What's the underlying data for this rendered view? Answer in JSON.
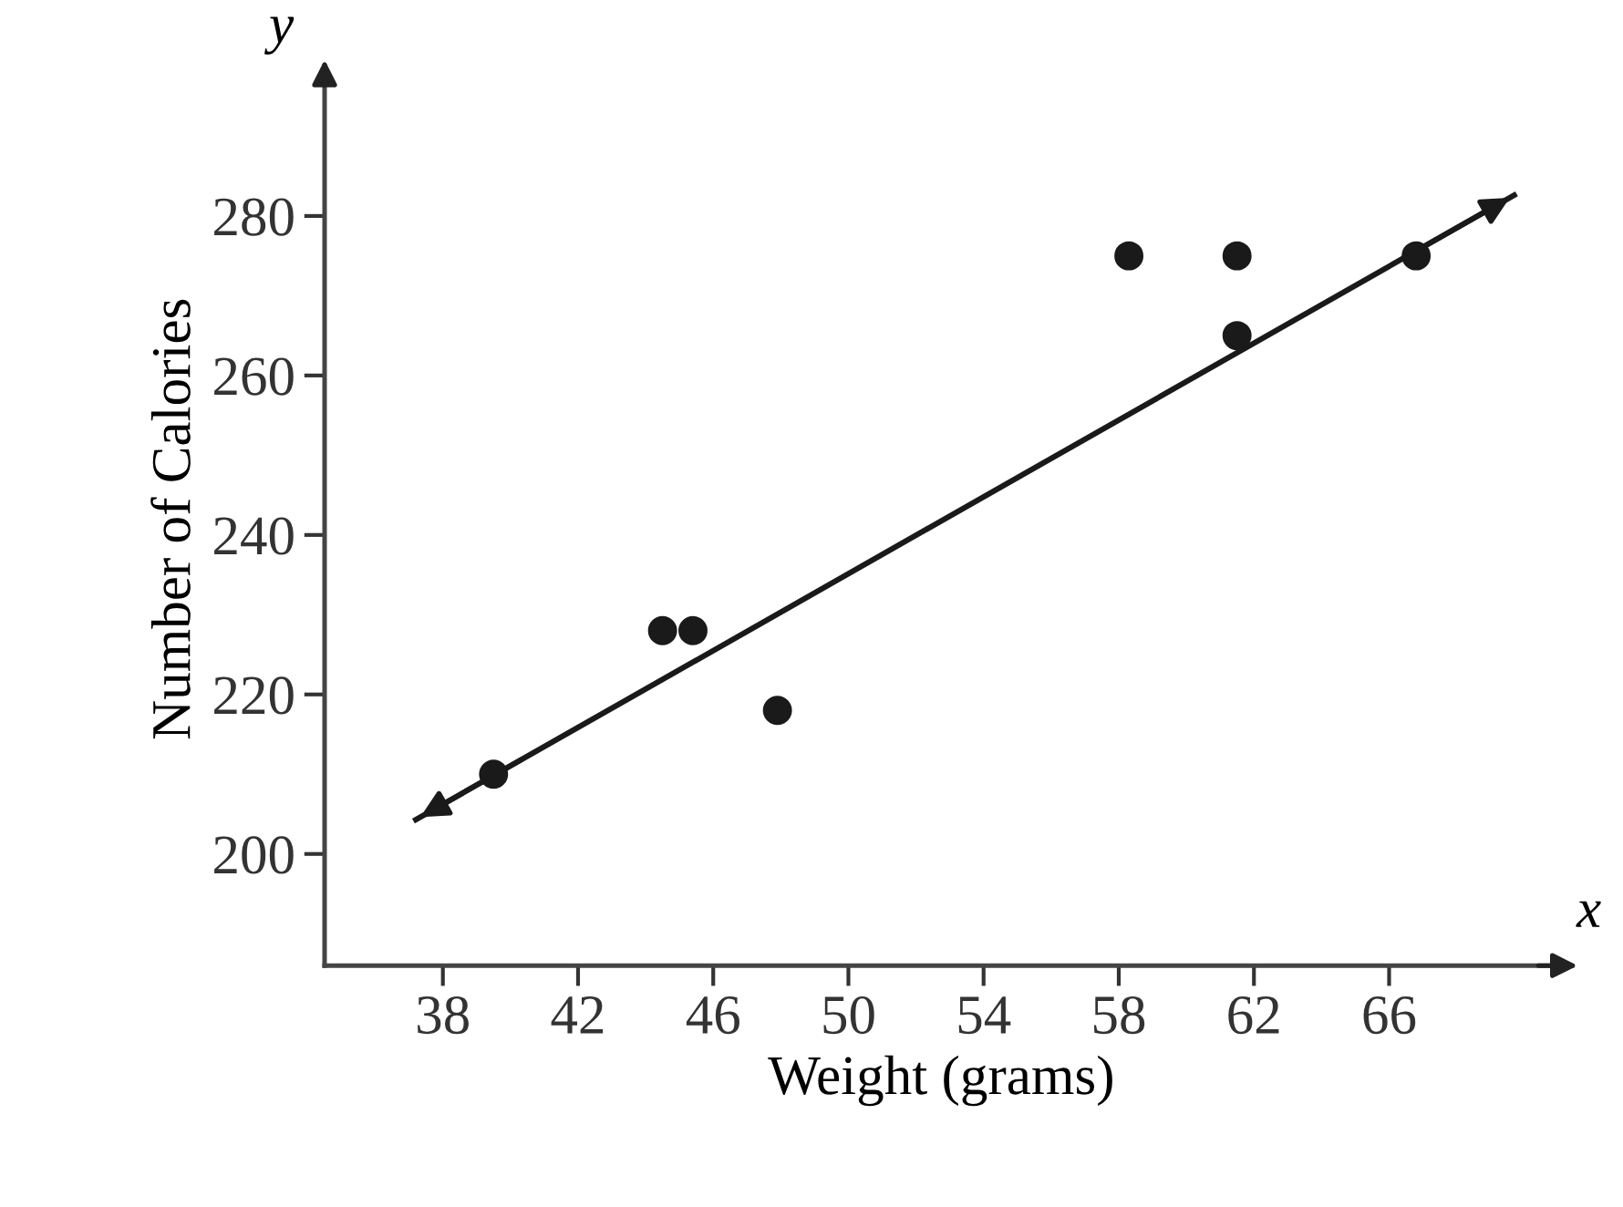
{
  "chart_data": {
    "type": "scatter",
    "xlabel": "Weight (grams)",
    "ylabel": "Number of Calories",
    "series": [
      {
        "color": "#1a1a1a",
        "marker": "circle",
        "x": [
          39.5,
          44.5,
          45.4,
          47.9,
          58.3,
          61.5,
          61.5,
          66.8
        ],
        "values": [
          210,
          228,
          228,
          218,
          275,
          275,
          265,
          275
        ]
      },
      {
        "type": "line",
        "color": "#1a1a1a",
        "marker": "none",
        "line_style": "solid",
        "x": [
          37.2,
          69.7
        ],
        "values": [
          204.3,
          282.6
        ]
      }
    ],
    "xlim": [
      34.5,
      71
    ],
    "ylim": [
      186,
      298
    ],
    "xticks": [
      38,
      42,
      46,
      50,
      54,
      58,
      62,
      66
    ],
    "yticks": [
      200,
      220,
      240,
      260,
      280
    ],
    "grid": false,
    "annotations": [
      "x",
      "y"
    ]
  }
}
